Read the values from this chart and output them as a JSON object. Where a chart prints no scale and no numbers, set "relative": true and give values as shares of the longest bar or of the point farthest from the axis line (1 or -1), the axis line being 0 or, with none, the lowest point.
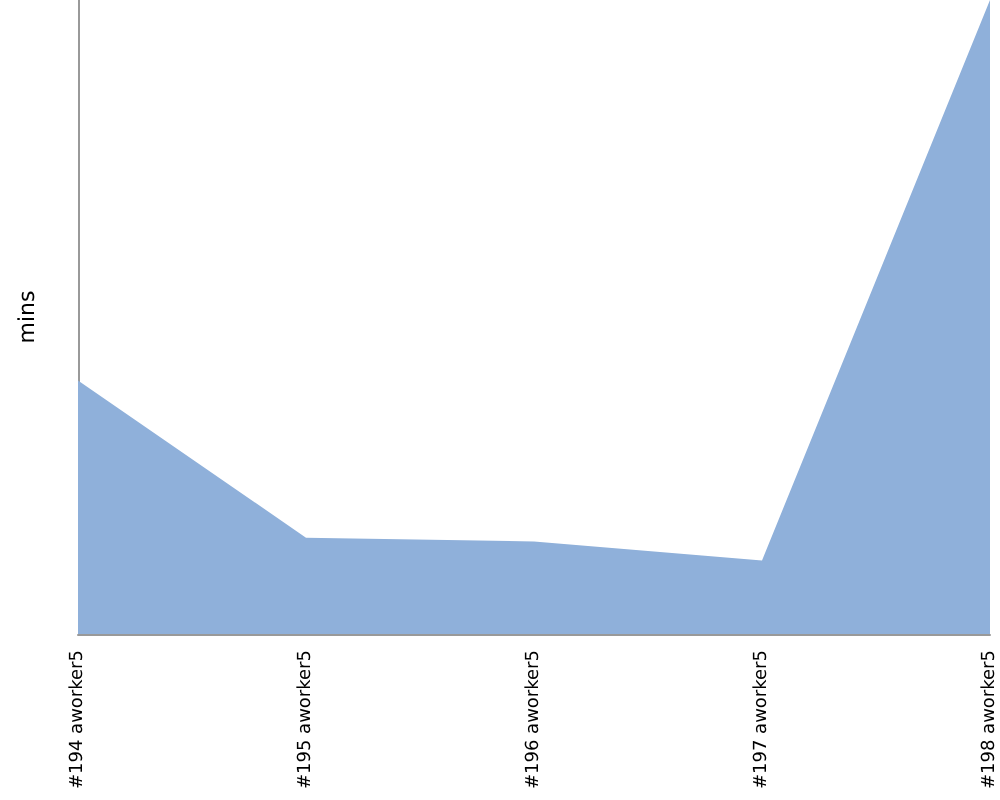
{
  "chart_data": {
    "type": "area",
    "ylabel": "mins",
    "relative": true,
    "categories": [
      "#194 aworker5",
      "#195 aworker5",
      "#196 aworker5",
      "#197 aworker5",
      "#198 aworker5"
    ],
    "series": [
      {
        "color": "#8fb0da",
        "values": [
          0.4,
          0.152,
          0.146,
          0.116,
          1
        ]
      }
    ],
    "grid": false
  }
}
